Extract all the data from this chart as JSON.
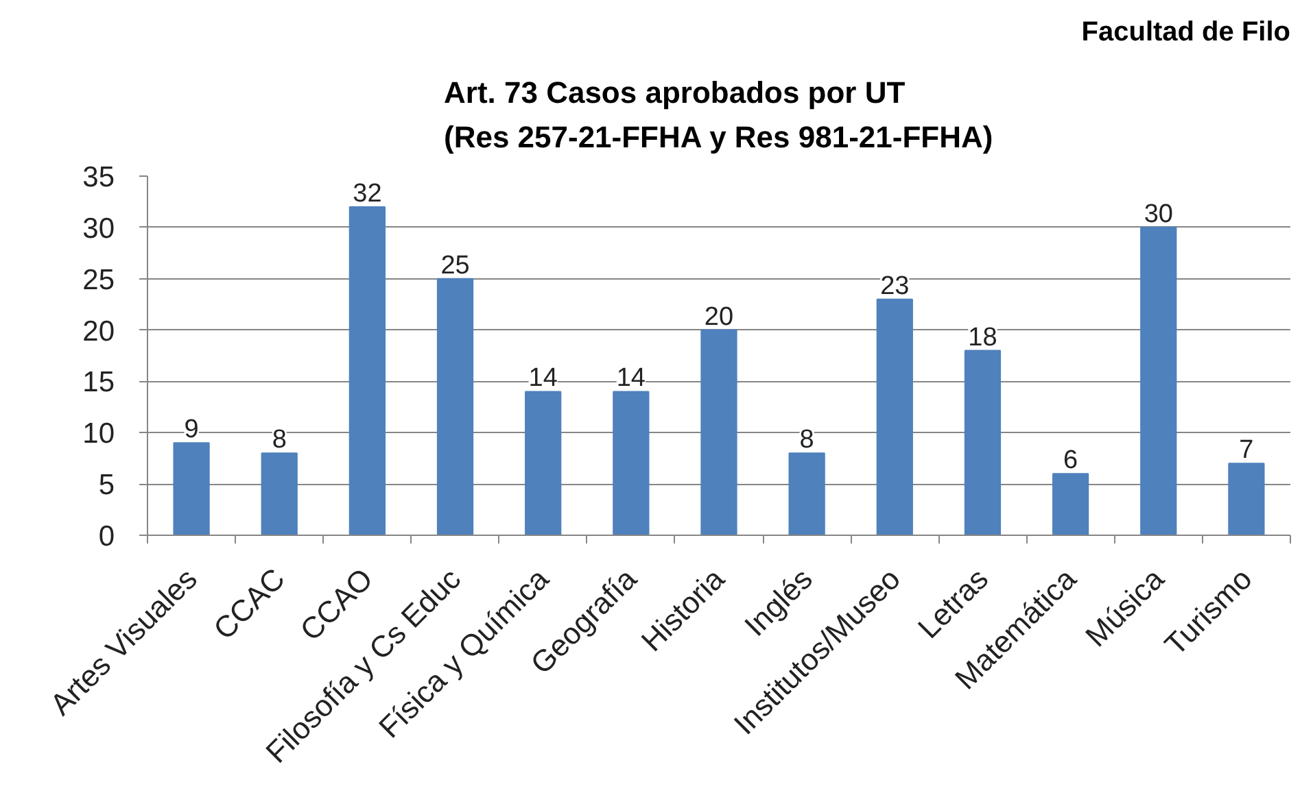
{
  "chart_data": {
    "type": "bar",
    "title": "Art. 73 Casos aprobados por UT\n(Res 257-21-FFHA y Res 981-21-FFHA)",
    "categories": [
      "Artes Visuales",
      "CCAC",
      "CCAO",
      "Filosofía y Cs Educ",
      "Física y Química",
      "Geografía",
      "Historia",
      "Inglés",
      "Institutos/Museo",
      "Letras",
      "Matemática",
      "Música",
      "Turismo"
    ],
    "values": [
      9,
      8,
      32,
      25,
      14,
      14,
      20,
      8,
      23,
      18,
      6,
      30,
      7
    ],
    "color": "#4f81bd",
    "ylim": [
      0,
      35
    ],
    "yticks": [
      0,
      5,
      10,
      15,
      20,
      25,
      30,
      35
    ],
    "grid": "y",
    "data_labels": true,
    "annotations": [
      "Facultad de Filo"
    ]
  }
}
